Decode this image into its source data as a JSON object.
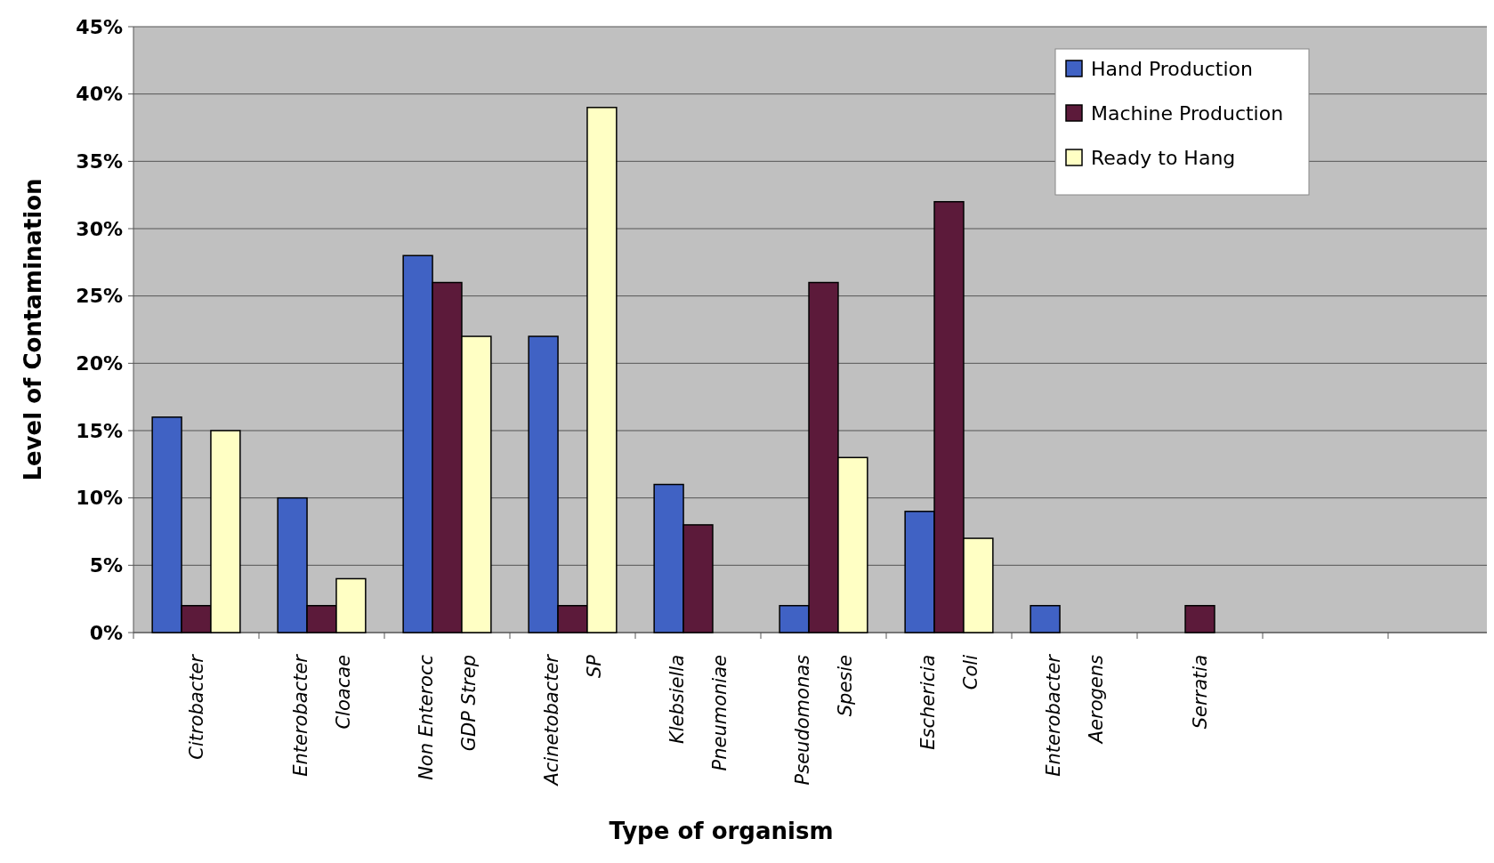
{
  "chart_data": {
    "type": "bar",
    "xlabel": "Type of organism",
    "ylabel": "Level of Contamination",
    "categories": [
      "Citrobacter",
      "Enterobacter Cloacae",
      "Non Enterocc GDP Strep",
      "Acinetobacter SP",
      "Klebsiella Pneumoniae",
      "Pseudomonas Spesie",
      "Eschericia Coli",
      "Enterobacter Aerogens",
      "Serratia",
      null,
      null
    ],
    "series": [
      {
        "name": "Hand Production",
        "color": "#4062c4",
        "values": [
          0.16,
          0.1,
          0.28,
          0.22,
          0.11,
          0.02,
          0.09,
          0.02,
          null,
          null,
          null
        ]
      },
      {
        "name": "Machine Production",
        "color": "#5c1a3a",
        "values": [
          0.02,
          0.02,
          0.26,
          0.02,
          0.08,
          0.26,
          0.32,
          null,
          0.02,
          null,
          null
        ]
      },
      {
        "name": "Ready to Hang",
        "color": "#ffffc4",
        "values": [
          0.15,
          0.04,
          0.22,
          0.39,
          null,
          0.13,
          0.07,
          null,
          null,
          null,
          null
        ]
      }
    ],
    "ylim": [
      0,
      0.45
    ],
    "yticks": [
      {
        "value": 0,
        "label": "0%"
      },
      {
        "value": 0.05,
        "label": "5%"
      },
      {
        "value": 0.1,
        "label": "10%"
      },
      {
        "value": 0.15,
        "label": "15%"
      },
      {
        "value": 0.2,
        "label": "20%"
      },
      {
        "value": 0.25,
        "label": "25%"
      },
      {
        "value": 0.3,
        "label": "30%"
      },
      {
        "value": 0.35,
        "label": "35%"
      },
      {
        "value": 0.4,
        "label": "40%"
      },
      {
        "value": 0.45,
        "label": "45%"
      }
    ],
    "grid": "y",
    "legend": "top right"
  }
}
